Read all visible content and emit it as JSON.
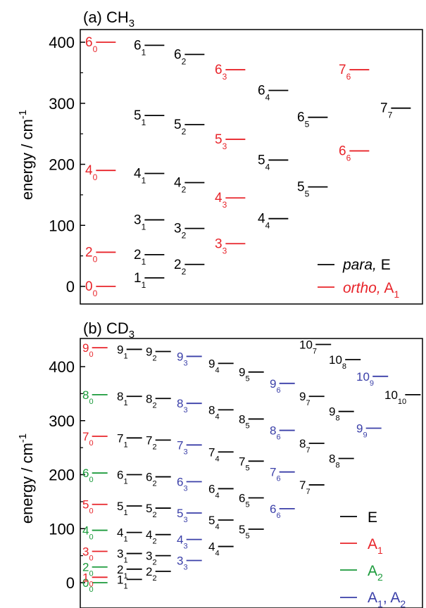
{
  "colors": {
    "E": "#000000",
    "A1": "#e8242a",
    "A2": "#1a9a3a",
    "A1A2": "#3a3fa8",
    "axis": "#000000"
  },
  "chart_data": [
    {
      "type": "scatter",
      "title": "(a) CH",
      "title_sub": "3",
      "ylabel": "energy / cm",
      "ylabel_sup": "-1",
      "ylim": [
        -15,
        410
      ],
      "yticks": [
        0,
        100,
        200,
        300,
        400
      ],
      "ytick_labels": [
        "0",
        "100",
        "200",
        "300",
        "400"
      ],
      "grid": false,
      "legend_position": "bottom-right",
      "legend": [
        {
          "key": "E",
          "main": "para,",
          "post": " E",
          "sub": "",
          "italic": true
        },
        {
          "key": "A1",
          "main": "ortho,",
          "post": " A",
          "sub": "1",
          "italic": true
        }
      ],
      "levels": [
        {
          "n": "0",
          "k": "0",
          "energy": 0,
          "col": 0,
          "sym": "A1"
        },
        {
          "n": "2",
          "k": "0",
          "energy": 56,
          "col": 0,
          "sym": "A1"
        },
        {
          "n": "4",
          "k": "0",
          "energy": 190,
          "col": 0,
          "sym": "A1"
        },
        {
          "n": "6",
          "k": "0",
          "energy": 400,
          "col": 0,
          "sym": "A1"
        },
        {
          "n": "1",
          "k": "1",
          "energy": 14,
          "col": 1,
          "sym": "E"
        },
        {
          "n": "2",
          "k": "1",
          "energy": 52,
          "col": 1,
          "sym": "E"
        },
        {
          "n": "3",
          "k": "1",
          "energy": 109,
          "col": 1,
          "sym": "E"
        },
        {
          "n": "4",
          "k": "1",
          "energy": 185,
          "col": 1,
          "sym": "E"
        },
        {
          "n": "5",
          "k": "1",
          "energy": 280,
          "col": 1,
          "sym": "E"
        },
        {
          "n": "6",
          "k": "1",
          "energy": 395,
          "col": 1,
          "sym": "E"
        },
        {
          "n": "2",
          "k": "2",
          "energy": 36,
          "col": 2,
          "sym": "E"
        },
        {
          "n": "3",
          "k": "2",
          "energy": 95,
          "col": 2,
          "sym": "E"
        },
        {
          "n": "4",
          "k": "2",
          "energy": 170,
          "col": 2,
          "sym": "E"
        },
        {
          "n": "5",
          "k": "2",
          "energy": 265,
          "col": 2,
          "sym": "E"
        },
        {
          "n": "6",
          "k": "2",
          "energy": 380,
          "col": 2,
          "sym": "E"
        },
        {
          "n": "3",
          "k": "3",
          "energy": 70,
          "col": 3,
          "sym": "A1"
        },
        {
          "n": "4",
          "k": "3",
          "energy": 145,
          "col": 3,
          "sym": "A1"
        },
        {
          "n": "5",
          "k": "3",
          "energy": 241,
          "col": 3,
          "sym": "A1"
        },
        {
          "n": "6",
          "k": "3",
          "energy": 355,
          "col": 3,
          "sym": "A1"
        },
        {
          "n": "4",
          "k": "4",
          "energy": 111,
          "col": 4,
          "sym": "E"
        },
        {
          "n": "5",
          "k": "4",
          "energy": 207,
          "col": 4,
          "sym": "E"
        },
        {
          "n": "6",
          "k": "4",
          "energy": 321,
          "col": 4,
          "sym": "E"
        },
        {
          "n": "5",
          "k": "5",
          "energy": 163,
          "col": 5,
          "sym": "E"
        },
        {
          "n": "6",
          "k": "5",
          "energy": 277,
          "col": 5,
          "sym": "E"
        },
        {
          "n": "6",
          "k": "6",
          "energy": 222,
          "col": 6,
          "sym": "A1"
        },
        {
          "n": "7",
          "k": "6",
          "energy": 355,
          "col": 6,
          "sym": "A1"
        },
        {
          "n": "7",
          "k": "7",
          "energy": 292,
          "col": 7,
          "sym": "E"
        }
      ]
    },
    {
      "type": "scatter",
      "title": "(b) CD",
      "title_sub": "3",
      "ylabel": "energy / cm",
      "ylabel_sup": "-1",
      "ylim": [
        -25,
        453
      ],
      "yticks": [
        0,
        100,
        200,
        300,
        400
      ],
      "ytick_labels": [
        "0",
        "100",
        "200",
        "300",
        "400"
      ],
      "grid": false,
      "legend_position": "bottom-right",
      "legend": [
        {
          "key": "E",
          "main": "E",
          "post": "",
          "sub": "",
          "italic": false
        },
        {
          "key": "A1",
          "main": "A",
          "post": "",
          "sub": "1",
          "italic": false
        },
        {
          "key": "A2",
          "main": "A",
          "post": "",
          "sub": "2",
          "italic": false
        },
        {
          "key": "A1A2",
          "main": "A",
          "post": ", A",
          "sub": "1",
          "sub2": "2",
          "italic": false
        }
      ],
      "levels": [
        {
          "n": "0",
          "k": "0",
          "energy": 0,
          "col": 0,
          "sym": "A2"
        },
        {
          "n": "1",
          "k": "0",
          "energy": 10,
          "col": 0,
          "sym": "A1"
        },
        {
          "n": "2",
          "k": "0",
          "energy": 29,
          "col": 0,
          "sym": "A2"
        },
        {
          "n": "3",
          "k": "0",
          "energy": 58,
          "col": 0,
          "sym": "A1"
        },
        {
          "n": "4",
          "k": "0",
          "energy": 97,
          "col": 0,
          "sym": "A2"
        },
        {
          "n": "5",
          "k": "0",
          "energy": 145,
          "col": 0,
          "sym": "A1"
        },
        {
          "n": "6",
          "k": "0",
          "energy": 203,
          "col": 0,
          "sym": "A2"
        },
        {
          "n": "7",
          "k": "0",
          "energy": 271,
          "col": 0,
          "sym": "A1"
        },
        {
          "n": "8",
          "k": "0",
          "energy": 348,
          "col": 0,
          "sym": "A2"
        },
        {
          "n": "9",
          "k": "0",
          "energy": 435,
          "col": 0,
          "sym": "A1"
        },
        {
          "n": "1",
          "k": "1",
          "energy": 6,
          "col": 1,
          "sym": "E"
        },
        {
          "n": "2",
          "k": "1",
          "energy": 25,
          "col": 1,
          "sym": "E"
        },
        {
          "n": "3",
          "k": "1",
          "energy": 54,
          "col": 1,
          "sym": "E"
        },
        {
          "n": "4",
          "k": "1",
          "energy": 93,
          "col": 1,
          "sym": "E"
        },
        {
          "n": "5",
          "k": "1",
          "energy": 142,
          "col": 1,
          "sym": "E"
        },
        {
          "n": "6",
          "k": "1",
          "energy": 200,
          "col": 1,
          "sym": "E"
        },
        {
          "n": "7",
          "k": "1",
          "energy": 268,
          "col": 1,
          "sym": "E"
        },
        {
          "n": "8",
          "k": "1",
          "energy": 345,
          "col": 1,
          "sym": "E"
        },
        {
          "n": "9",
          "k": "1",
          "energy": 432,
          "col": 1,
          "sym": "E"
        },
        {
          "n": "2",
          "k": "2",
          "energy": 21,
          "col": 2,
          "sym": "E"
        },
        {
          "n": "3",
          "k": "2",
          "energy": 50,
          "col": 2,
          "sym": "E"
        },
        {
          "n": "4",
          "k": "2",
          "energy": 89,
          "col": 2,
          "sym": "E"
        },
        {
          "n": "5",
          "k": "2",
          "energy": 138,
          "col": 2,
          "sym": "E"
        },
        {
          "n": "6",
          "k": "2",
          "energy": 196,
          "col": 2,
          "sym": "E"
        },
        {
          "n": "7",
          "k": "2",
          "energy": 264,
          "col": 2,
          "sym": "E"
        },
        {
          "n": "8",
          "k": "2",
          "energy": 341,
          "col": 2,
          "sym": "E"
        },
        {
          "n": "9",
          "k": "2",
          "energy": 428,
          "col": 2,
          "sym": "E"
        },
        {
          "n": "3",
          "k": "3",
          "energy": 41,
          "col": 3,
          "sym": "A1A2"
        },
        {
          "n": "4",
          "k": "3",
          "energy": 80,
          "col": 3,
          "sym": "A1A2"
        },
        {
          "n": "5",
          "k": "3",
          "energy": 129,
          "col": 3,
          "sym": "A1A2"
        },
        {
          "n": "6",
          "k": "3",
          "energy": 187,
          "col": 3,
          "sym": "A1A2"
        },
        {
          "n": "7",
          "k": "3",
          "energy": 255,
          "col": 3,
          "sym": "A1A2"
        },
        {
          "n": "8",
          "k": "3",
          "energy": 332,
          "col": 3,
          "sym": "A1A2"
        },
        {
          "n": "9",
          "k": "3",
          "energy": 419,
          "col": 3,
          "sym": "A1A2"
        },
        {
          "n": "4",
          "k": "4",
          "energy": 67,
          "col": 4,
          "sym": "E"
        },
        {
          "n": "5",
          "k": "4",
          "energy": 116,
          "col": 4,
          "sym": "E"
        },
        {
          "n": "6",
          "k": "4",
          "energy": 174,
          "col": 4,
          "sym": "E"
        },
        {
          "n": "7",
          "k": "4",
          "energy": 242,
          "col": 4,
          "sym": "E"
        },
        {
          "n": "8",
          "k": "4",
          "energy": 320,
          "col": 4,
          "sym": "E"
        },
        {
          "n": "9",
          "k": "4",
          "energy": 406,
          "col": 4,
          "sym": "E"
        },
        {
          "n": "5",
          "k": "5",
          "energy": 99,
          "col": 5,
          "sym": "E"
        },
        {
          "n": "6",
          "k": "5",
          "energy": 157,
          "col": 5,
          "sym": "E"
        },
        {
          "n": "7",
          "k": "5",
          "energy": 225,
          "col": 5,
          "sym": "E"
        },
        {
          "n": "8",
          "k": "5",
          "energy": 303,
          "col": 5,
          "sym": "E"
        },
        {
          "n": "9",
          "k": "5",
          "energy": 390,
          "col": 5,
          "sym": "E"
        },
        {
          "n": "6",
          "k": "6",
          "energy": 137,
          "col": 6,
          "sym": "A1A2"
        },
        {
          "n": "7",
          "k": "6",
          "energy": 205,
          "col": 6,
          "sym": "A1A2"
        },
        {
          "n": "8",
          "k": "6",
          "energy": 282,
          "col": 6,
          "sym": "A1A2"
        },
        {
          "n": "9",
          "k": "6",
          "energy": 369,
          "col": 6,
          "sym": "A1A2"
        },
        {
          "n": "7",
          "k": "7",
          "energy": 181,
          "col": 7,
          "sym": "E"
        },
        {
          "n": "8",
          "k": "7",
          "energy": 258,
          "col": 7,
          "sym": "E"
        },
        {
          "n": "9",
          "k": "7",
          "energy": 345,
          "col": 7,
          "sym": "E"
        },
        {
          "n": "10",
          "k": "7",
          "energy": 441,
          "col": 7,
          "sym": "E"
        },
        {
          "n": "8",
          "k": "8",
          "energy": 230,
          "col": 8,
          "sym": "E"
        },
        {
          "n": "9",
          "k": "8",
          "energy": 317,
          "col": 8,
          "sym": "E"
        },
        {
          "n": "10",
          "k": "8",
          "energy": 413,
          "col": 8,
          "sym": "E"
        },
        {
          "n": "9",
          "k": "9",
          "energy": 286,
          "col": 9,
          "sym": "A1A2"
        },
        {
          "n": "10",
          "k": "9",
          "energy": 382,
          "col": 9,
          "sym": "A1A2"
        },
        {
          "n": "10",
          "k": "10",
          "energy": 348,
          "col": 10,
          "sym": "E"
        }
      ]
    }
  ]
}
